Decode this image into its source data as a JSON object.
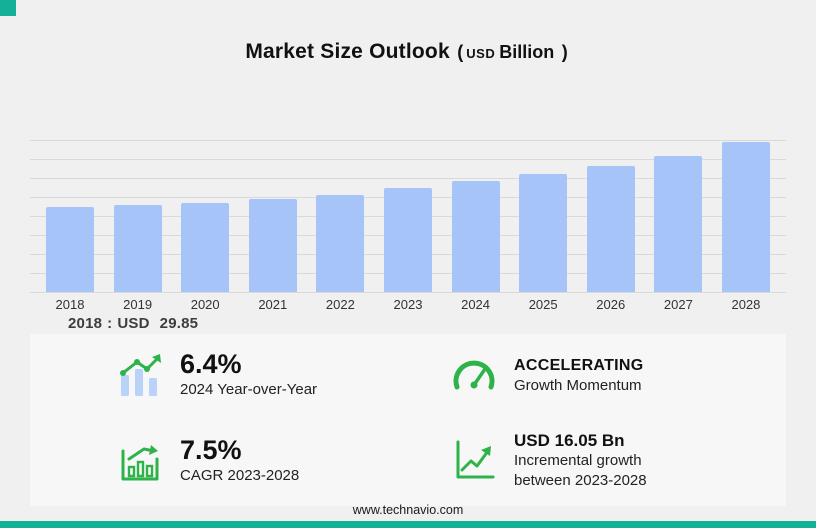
{
  "brand": {
    "teal": "#12b198",
    "green": "#2db34a",
    "bar_blue": "#a6c4f7"
  },
  "header": {
    "title": "Market Size Outlook",
    "unit_open": "(",
    "unit_currency": "USD",
    "unit_word": "Billion",
    "unit_close": ")"
  },
  "chart_data": {
    "type": "bar",
    "title": "Market Size Outlook (USD Billion)",
    "unit": "USD Billion",
    "categories": [
      "2018",
      "2019",
      "2020",
      "2021",
      "2022",
      "2023",
      "2024",
      "2025",
      "2026",
      "2027",
      "2028"
    ],
    "values": [
      29.85,
      30.6,
      31.4,
      32.9,
      34.3,
      36.85,
      39.21,
      41.6,
      44.4,
      47.9,
      52.9
    ],
    "ylim": [
      0,
      55
    ],
    "grid": true,
    "legend": false,
    "xlabel": "",
    "ylabel": "",
    "annotations": [
      "2018 : USD 29.85"
    ]
  },
  "note": {
    "year": "2018",
    "separator": ":",
    "currency": "USD",
    "value": "29.85"
  },
  "stats": [
    {
      "icon": "yoy-bars-icon",
      "value": "6.4%",
      "label": "2024 Year-over-Year"
    },
    {
      "icon": "gauge-icon",
      "value": "ACCELERATING",
      "label": "Growth Momentum"
    },
    {
      "icon": "cagr-chart-icon",
      "value": "7.5%",
      "label": "CAGR 2023-2028"
    },
    {
      "icon": "incremental-growth-icon",
      "value": "USD 16.05 Bn",
      "label_line1": "Incremental growth",
      "label_line2": "between 2023-2028"
    }
  ],
  "footer": {
    "url": "www.technavio.com"
  }
}
